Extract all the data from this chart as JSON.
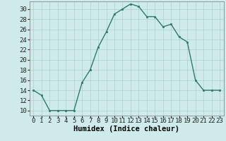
{
  "xlabel": "Humidex (Indice chaleur)",
  "x": [
    0,
    1,
    2,
    3,
    4,
    5,
    6,
    7,
    8,
    9,
    10,
    11,
    12,
    13,
    14,
    15,
    16,
    17,
    18,
    19,
    20,
    21,
    22,
    23
  ],
  "y": [
    14,
    13,
    10,
    10,
    10,
    10,
    15.5,
    18,
    22.5,
    25.5,
    29,
    30,
    31,
    30.5,
    28.5,
    28.5,
    26.5,
    27,
    24.5,
    23.5,
    16,
    14,
    14,
    14
  ],
  "ylim": [
    9,
    31.5
  ],
  "xlim": [
    -0.5,
    23.5
  ],
  "yticks": [
    10,
    12,
    14,
    16,
    18,
    20,
    22,
    24,
    26,
    28,
    30
  ],
  "xticks": [
    0,
    1,
    2,
    3,
    4,
    5,
    6,
    7,
    8,
    9,
    10,
    11,
    12,
    13,
    14,
    15,
    16,
    17,
    18,
    19,
    20,
    21,
    22,
    23
  ],
  "line_color": "#2d7b6b",
  "marker_color": "#2d7b6b",
  "bg_color": "#ceeaea",
  "grid_color": "#b0d0d0",
  "tick_fontsize": 6.5,
  "xlabel_fontsize": 7.5
}
